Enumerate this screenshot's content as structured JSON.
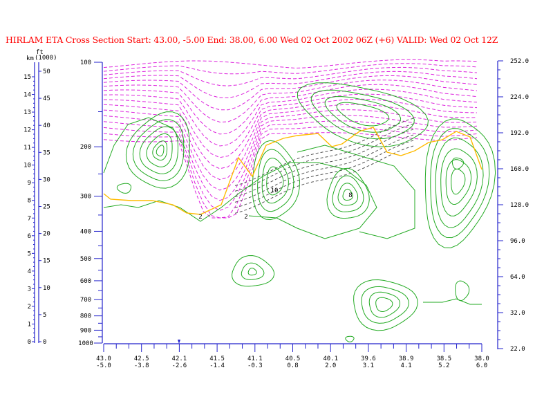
{
  "title": "HIRLAM ETA Cross Section Start: 43.00,  -5.00 End: 38.00,  6.00 Wed 02 Oct 2002 06Z  (+6) VALID: Wed 02 Oct 12Z",
  "colors": {
    "title": "#ff0000",
    "axis": "#2222cc",
    "wind_isotachs": "#22aa22",
    "temperature_dashed": "#dd22dd",
    "tropopause": "#ffbb00",
    "inner_dashed": "#555555"
  },
  "chart_data": {
    "type": "contour",
    "left_axes": {
      "km_label": "km",
      "ft_label": "ft",
      "ft_unit": "(1000)",
      "km_ticks": [
        "0",
        "1",
        "2",
        "3",
        "4",
        "5",
        "6",
        "7",
        "8",
        "9",
        "10",
        "11",
        "12",
        "13",
        "14",
        "15"
      ],
      "ft_ticks": [
        "0",
        "5",
        "10",
        "15",
        "20",
        "25",
        "30",
        "35",
        "40",
        "45",
        "50"
      ]
    },
    "pressure_axis": {
      "ticks": [
        "100",
        "200",
        "300",
        "400",
        "500",
        "600",
        "700",
        "800",
        "900",
        "1000"
      ],
      "values": [
        100,
        200,
        300,
        400,
        500,
        600,
        700,
        800,
        900,
        1000
      ]
    },
    "right_axis": {
      "ticks": [
        "252.0",
        "224.0",
        "192.0",
        "160.0",
        "128.0",
        "96.0",
        "64.0",
        "32.0",
        "22.0"
      ]
    },
    "x_axis": {
      "lat": [
        "43.0",
        "42.5",
        "42.1",
        "41.5",
        "41.1",
        "40.5",
        "40.1",
        "39.6",
        "38.9",
        "38.5",
        "38.0"
      ],
      "lon": [
        "-5.0",
        "-3.8",
        "-2.6",
        "-1.4",
        "-0.3",
        "0.8",
        "2.0",
        "3.1",
        "4.1",
        "5.2",
        "6.0"
      ]
    },
    "contour_labels": [
      "2",
      "2",
      "10",
      "8"
    ]
  }
}
